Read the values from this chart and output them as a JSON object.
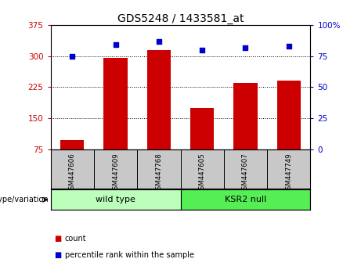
{
  "title": "GDS5248 / 1433581_at",
  "samples": [
    "GSM447606",
    "GSM447609",
    "GSM447768",
    "GSM447605",
    "GSM447607",
    "GSM447749"
  ],
  "bar_values": [
    97,
    295,
    315,
    175,
    235,
    240
  ],
  "percentile_values": [
    75,
    84,
    87,
    80,
    82,
    83
  ],
  "bar_color": "#cc0000",
  "dot_color": "#0000cc",
  "ylim_left": [
    75,
    375
  ],
  "ylim_right": [
    0,
    100
  ],
  "yticks_left": [
    75,
    150,
    225,
    300,
    375
  ],
  "yticks_right": [
    0,
    25,
    50,
    75,
    100
  ],
  "ytick_labels_right": [
    "0",
    "25",
    "50",
    "75",
    "100%"
  ],
  "groups": [
    {
      "label": "wild type",
      "indices": [
        0,
        1,
        2
      ],
      "color": "#bbffbb"
    },
    {
      "label": "KSR2 null",
      "indices": [
        3,
        4,
        5
      ],
      "color": "#55ee55"
    }
  ],
  "group_label": "genotype/variation",
  "legend_bar_label": "count",
  "legend_dot_label": "percentile rank within the sample",
  "background_color": "#ffffff",
  "plot_bg_color": "#ffffff",
  "grid_color": "#000000",
  "tick_label_color_left": "#cc0000",
  "tick_label_color_right": "#0000cc",
  "sample_box_color": "#c8c8c8",
  "bar_bottom": 75
}
